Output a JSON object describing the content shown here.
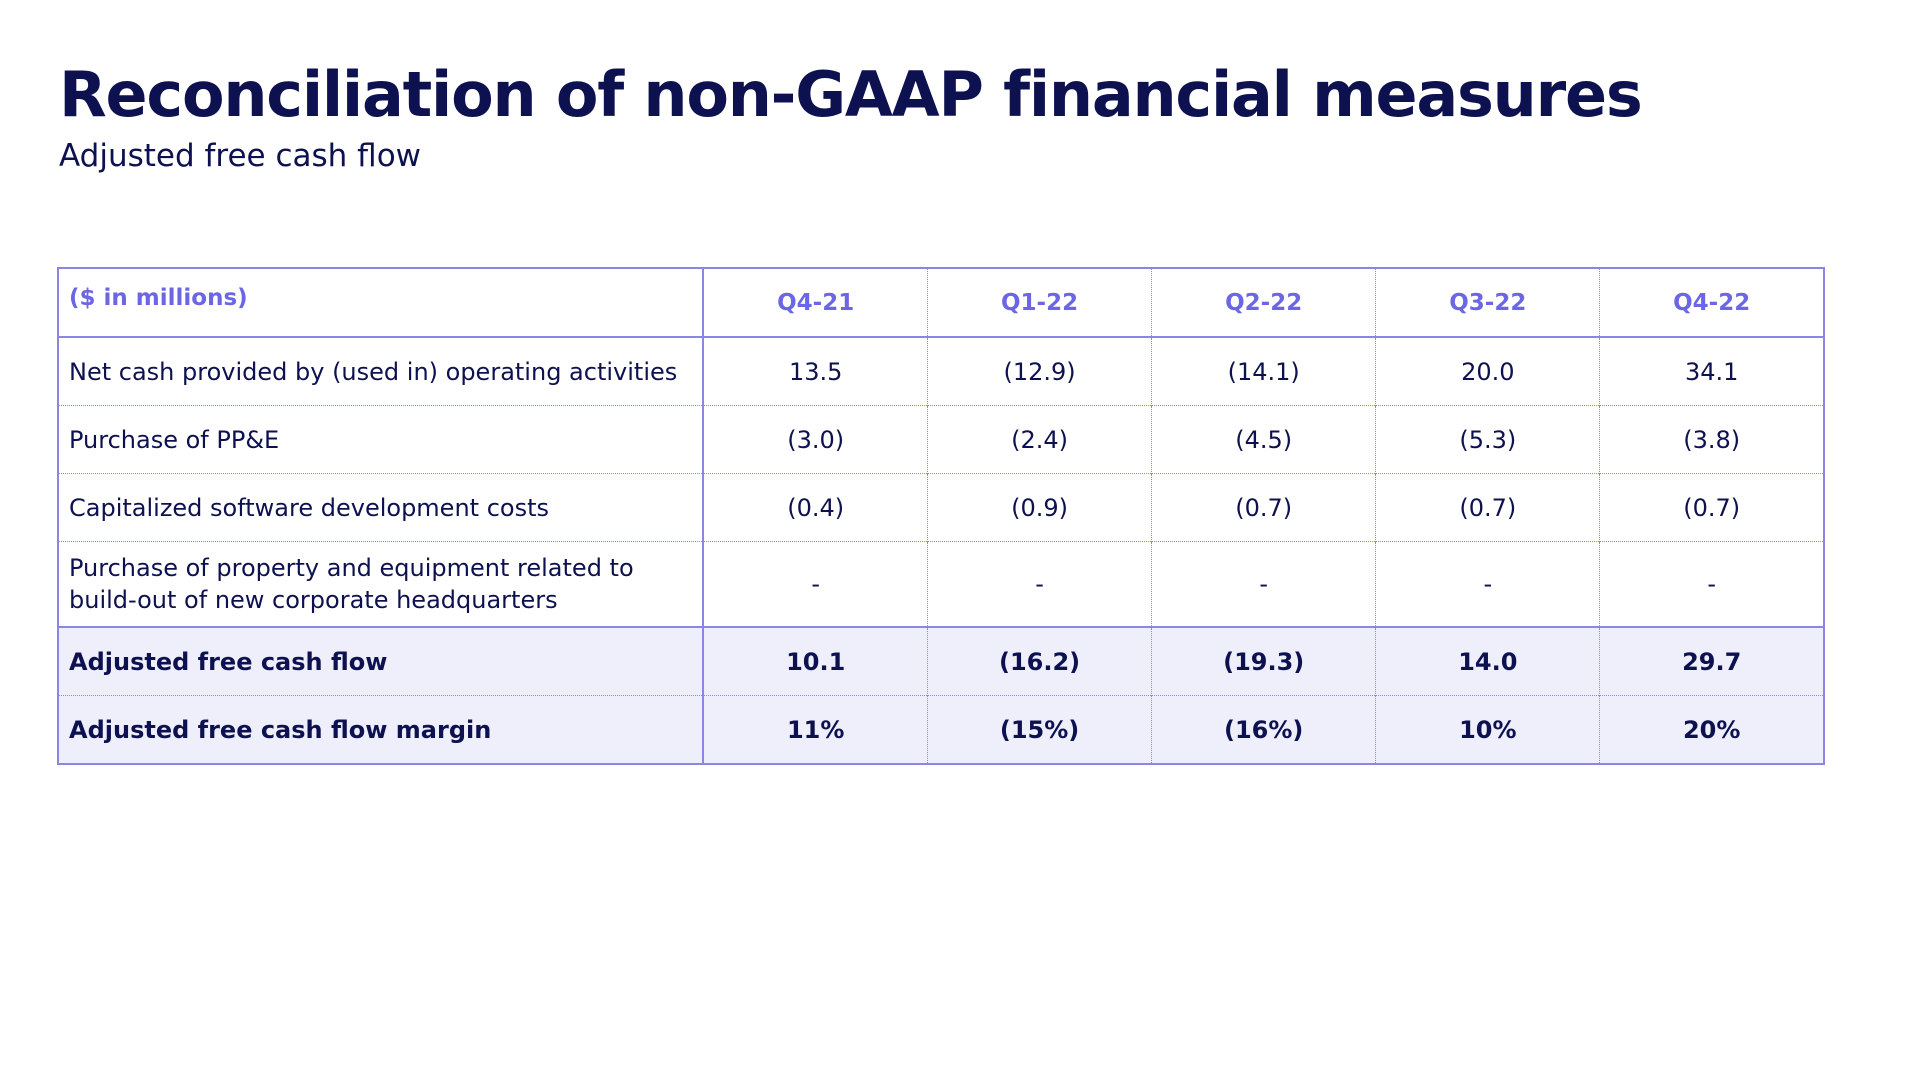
{
  "title": "Reconciliation of non-GAAP financial measures",
  "subtitle": "Adjusted free cash flow",
  "table": {
    "unit_header": "($ in millions)",
    "columns": [
      "Q4-21",
      "Q1-22",
      "Q2-22",
      "Q3-22",
      "Q4-22"
    ],
    "rows": [
      {
        "label": "Net cash provided by (used in) operating activities",
        "values": [
          "13.5",
          "(12.9)",
          "(14.1)",
          "20.0",
          "34.1"
        ]
      },
      {
        "label": "Purchase of PP&E",
        "values": [
          "(3.0)",
          "(2.4)",
          "(4.5)",
          "(5.3)",
          "(3.8)"
        ]
      },
      {
        "label": "Capitalized software development costs",
        "values": [
          "(0.4)",
          "(0.9)",
          "(0.7)",
          "(0.7)",
          "(0.7)"
        ]
      },
      {
        "label": "Purchase of property and equipment related to build-out of new corporate headquarters",
        "values": [
          "-",
          "-",
          "-",
          "-",
          "-"
        ]
      },
      {
        "label": "Adjusted free cash flow",
        "values": [
          "10.1",
          "(16.2)",
          "(19.3)",
          "14.0",
          "29.7"
        ]
      },
      {
        "label": "Adjusted free cash flow margin",
        "values": [
          "11%",
          "(15%)",
          "(16%)",
          "10%",
          "20%"
        ]
      }
    ]
  }
}
